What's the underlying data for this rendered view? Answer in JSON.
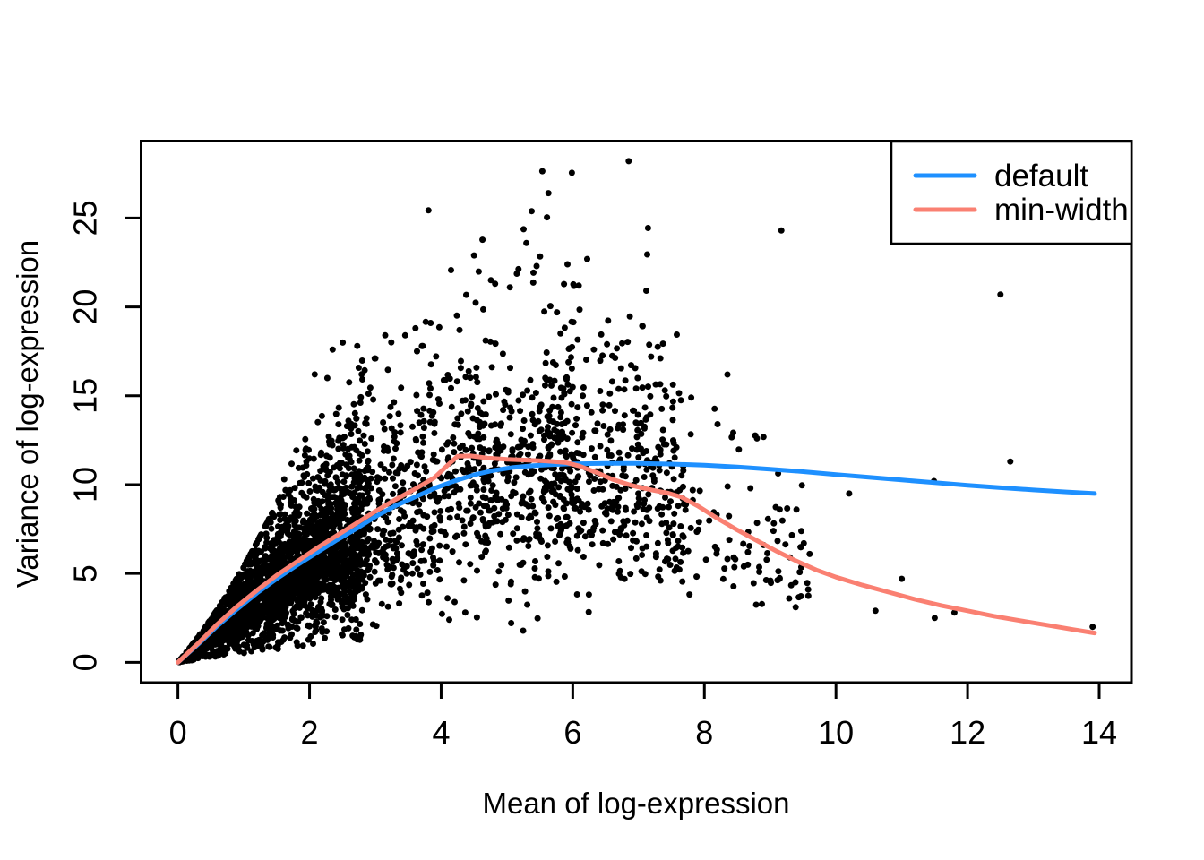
{
  "chart_data": {
    "type": "scatter",
    "title": "",
    "xlabel": "Mean of log-expression",
    "ylabel": "Variance of log-expression",
    "x_ticks": [
      0,
      2,
      4,
      6,
      8,
      10,
      12,
      14
    ],
    "y_ticks": [
      0,
      5,
      10,
      15,
      20,
      25
    ],
    "x_range": [
      -0.56,
      14.49
    ],
    "y_range": [
      -1.14,
      29.33
    ],
    "grid": false,
    "background_color": "#ffffff",
    "axis_color": "#000000",
    "point_color": "#000000",
    "legend": {
      "position": "topright",
      "items": [
        {
          "label": "default",
          "color": "#1e90ff"
        },
        {
          "label": "min-width",
          "color": "#fa8072"
        }
      ]
    },
    "series": [
      {
        "name": "default",
        "color": "#1e90ff",
        "points": [
          [
            0,
            0
          ],
          [
            0.3,
            1.0
          ],
          [
            0.6,
            2.05
          ],
          [
            0.9,
            3.0
          ],
          [
            1.2,
            3.9
          ],
          [
            1.5,
            4.7
          ],
          [
            1.8,
            5.45
          ],
          [
            2.1,
            6.15
          ],
          [
            2.4,
            6.85
          ],
          [
            2.7,
            7.5
          ],
          [
            3,
            8.2
          ],
          [
            3.3,
            8.8
          ],
          [
            3.6,
            9.3
          ],
          [
            3.9,
            9.8
          ],
          [
            4.2,
            10.2
          ],
          [
            4.5,
            10.55
          ],
          [
            4.8,
            10.8
          ],
          [
            5.1,
            10.97
          ],
          [
            5.4,
            11.07
          ],
          [
            5.7,
            11.13
          ],
          [
            6,
            11.17
          ],
          [
            6.5,
            11.2
          ],
          [
            7,
            11.2
          ],
          [
            7.5,
            11.16
          ],
          [
            8,
            11.1
          ],
          [
            8.5,
            11.0
          ],
          [
            9,
            10.87
          ],
          [
            9.5,
            10.73
          ],
          [
            10,
            10.57
          ],
          [
            10.5,
            10.42
          ],
          [
            11,
            10.26
          ],
          [
            11.5,
            10.11
          ],
          [
            12,
            9.96
          ],
          [
            12.5,
            9.83
          ],
          [
            13,
            9.7
          ],
          [
            13.5,
            9.59
          ],
          [
            13.93,
            9.5
          ]
        ]
      },
      {
        "name": "min-width",
        "color": "#fa8072",
        "points": [
          [
            0,
            0
          ],
          [
            0.3,
            1.05
          ],
          [
            0.6,
            2.15
          ],
          [
            0.9,
            3.15
          ],
          [
            1.2,
            4.05
          ],
          [
            1.5,
            4.9
          ],
          [
            1.8,
            5.65
          ],
          [
            2.1,
            6.4
          ],
          [
            2.4,
            7.1
          ],
          [
            2.7,
            7.8
          ],
          [
            3,
            8.5
          ],
          [
            3.3,
            9.15
          ],
          [
            3.6,
            9.75
          ],
          [
            3.9,
            10.4
          ],
          [
            4.1,
            11.1
          ],
          [
            4.25,
            11.6
          ],
          [
            4.45,
            11.62
          ],
          [
            4.7,
            11.5
          ],
          [
            5,
            11.42
          ],
          [
            5.3,
            11.38
          ],
          [
            5.6,
            11.33
          ],
          [
            5.9,
            11.24
          ],
          [
            6.1,
            11.05
          ],
          [
            6.35,
            10.7
          ],
          [
            6.6,
            10.3
          ],
          [
            6.9,
            9.95
          ],
          [
            7.2,
            9.7
          ],
          [
            7.45,
            9.52
          ],
          [
            7.65,
            9.3
          ],
          [
            7.9,
            8.8
          ],
          [
            8.2,
            8.1
          ],
          [
            8.5,
            7.45
          ],
          [
            8.8,
            6.85
          ],
          [
            9.1,
            6.25
          ],
          [
            9.4,
            5.7
          ],
          [
            9.7,
            5.2
          ],
          [
            10,
            4.8
          ],
          [
            10.4,
            4.35
          ],
          [
            10.8,
            3.95
          ],
          [
            11.2,
            3.55
          ],
          [
            11.6,
            3.2
          ],
          [
            12,
            2.9
          ],
          [
            12.4,
            2.6
          ],
          [
            12.8,
            2.35
          ],
          [
            13.2,
            2.1
          ],
          [
            13.6,
            1.85
          ],
          [
            13.93,
            1.65
          ]
        ]
      }
    ],
    "scatter_outliers": [
      [
        6.85,
        28.2
      ],
      [
        5.63,
        26.4
      ],
      [
        9.17,
        24.3
      ],
      [
        4.5,
        22.9
      ],
      [
        5.92,
        22.4
      ],
      [
        5.45,
        22.3
      ],
      [
        4.82,
        21.3
      ],
      [
        12.5,
        20.7
      ],
      [
        5.76,
        19.7
      ],
      [
        3.84,
        19.1
      ],
      [
        3.61,
        18.8
      ],
      [
        4.28,
        18.7
      ],
      [
        6.52,
        17.9
      ],
      [
        3.72,
        17.8
      ],
      [
        6.32,
        17.6
      ],
      [
        7.19,
        17.2
      ],
      [
        3.15,
        18.4
      ],
      [
        3.0,
        17.1
      ],
      [
        2.35,
        17.6
      ],
      [
        2.27,
        16.0
      ],
      [
        8.35,
        16.2
      ],
      [
        7.8,
        14.9
      ],
      [
        7.4,
        15.3
      ],
      [
        6.6,
        15.8
      ],
      [
        8.8,
        12.6
      ],
      [
        8.2,
        13.4
      ],
      [
        12.65,
        11.3
      ],
      [
        11.49,
        10.2
      ],
      [
        10.2,
        9.5
      ],
      [
        9.05,
        7.4
      ],
      [
        9.6,
        6.1
      ],
      [
        9.3,
        5.9
      ],
      [
        8.9,
        6.6
      ],
      [
        8.6,
        5.4
      ],
      [
        8.7,
        9.8
      ],
      [
        9.4,
        8.6
      ],
      [
        11.0,
        4.7
      ],
      [
        10.6,
        2.9
      ],
      [
        11.5,
        2.5
      ],
      [
        11.8,
        2.8
      ],
      [
        13.9,
        2.0
      ]
    ],
    "scatter_cloud": {
      "description": "dense cloud of ~4800 gene points: solid wedge from origin fanning around the trend, bulk at mean 0-6, sparse tail to 9.6",
      "seed": 20,
      "n": 4800,
      "sigma": 0.33,
      "bias": -0.05,
      "point_radius": 3.5
    }
  }
}
